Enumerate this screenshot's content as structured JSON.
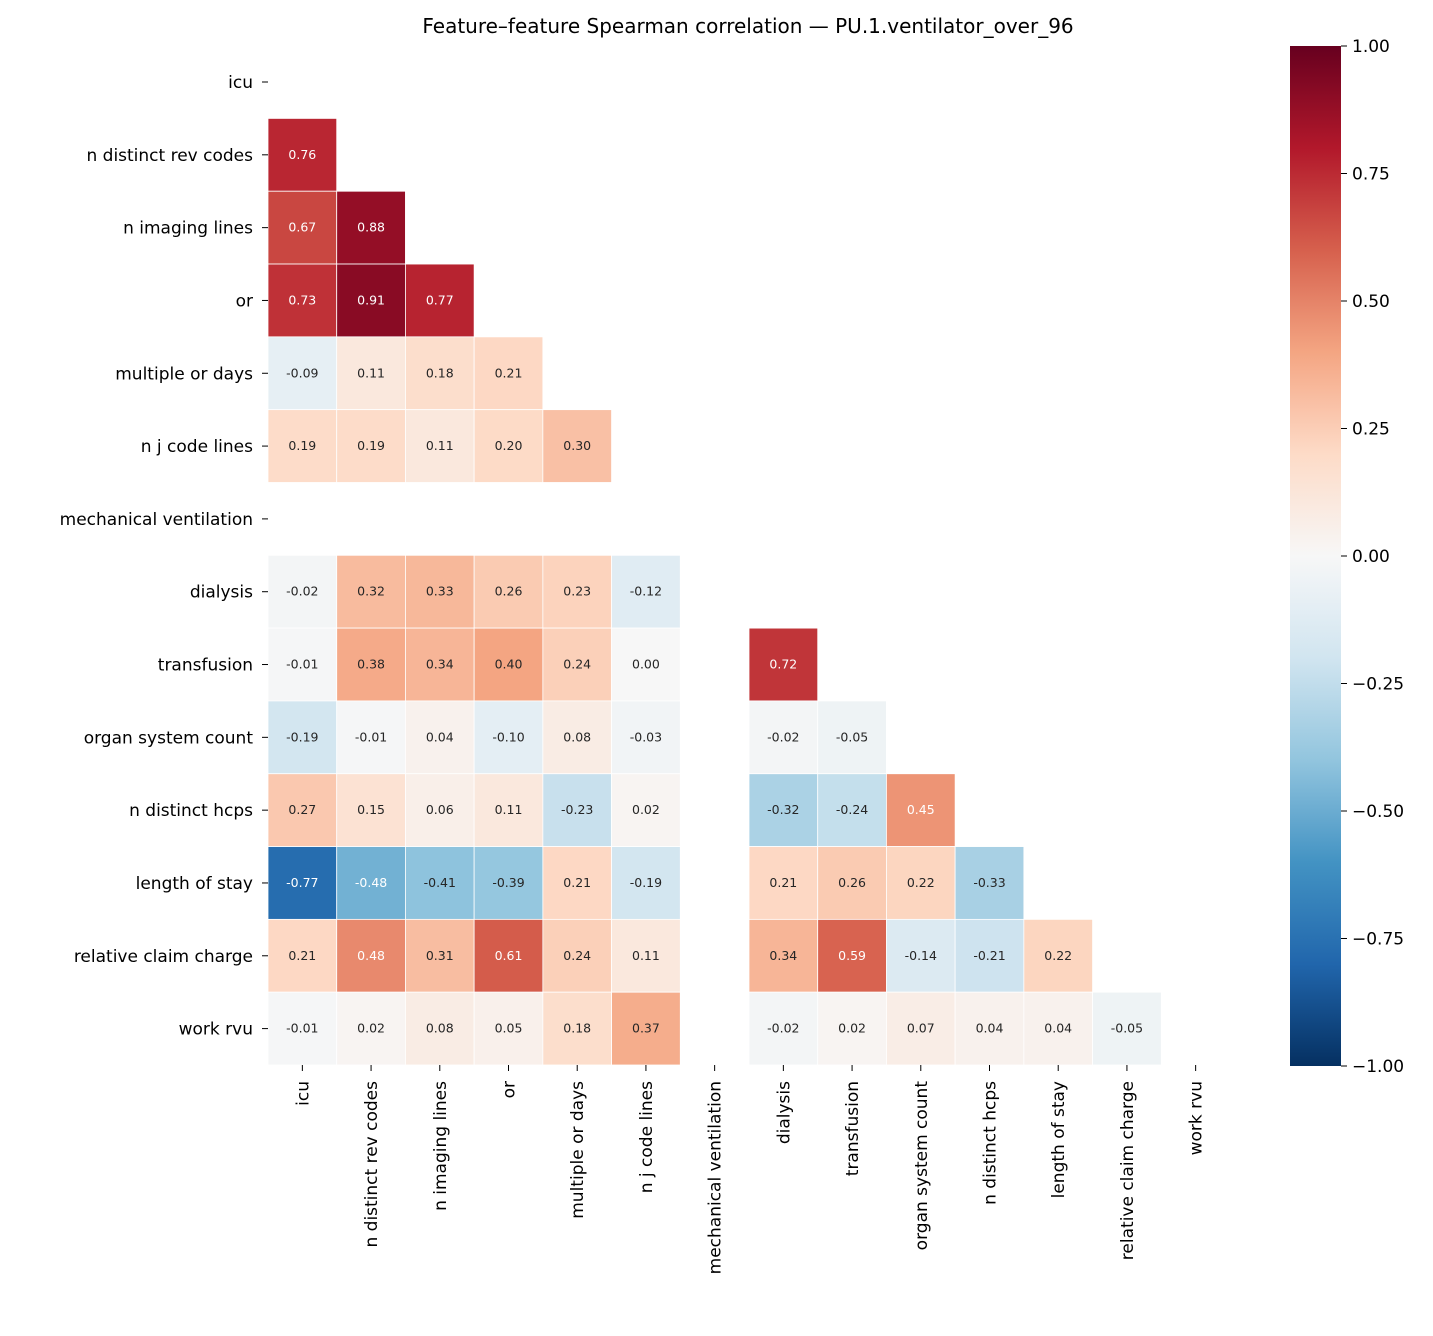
{
  "chart_data": {
    "type": "heatmap",
    "title": "Feature–feature Spearman correlation — PU.1.ventilator_over_96",
    "labels": [
      "icu",
      "n distinct rev codes",
      "n imaging lines",
      "or",
      "multiple or days",
      "n j code lines",
      "mechanical ventilation",
      "dialysis",
      "transfusion",
      "organ system count",
      "n distinct hcps",
      "length of stay",
      "relative claim charge",
      "work rvu"
    ],
    "mask": "upper triangle incl. diagonal",
    "lower_triangle": [
      [],
      [
        0.76
      ],
      [
        0.67,
        0.88
      ],
      [
        0.73,
        0.91,
        0.77
      ],
      [
        -0.09,
        0.11,
        0.18,
        0.21
      ],
      [
        0.19,
        0.19,
        0.11,
        0.2,
        0.3
      ],
      [
        null,
        null,
        null,
        null,
        null,
        null
      ],
      [
        -0.02,
        0.32,
        0.33,
        0.26,
        0.23,
        -0.12,
        null
      ],
      [
        -0.01,
        0.38,
        0.34,
        0.4,
        0.24,
        0.0,
        null,
        0.72
      ],
      [
        -0.19,
        -0.01,
        0.04,
        -0.1,
        0.08,
        -0.03,
        null,
        -0.02,
        -0.05
      ],
      [
        0.27,
        0.15,
        0.06,
        0.11,
        -0.23,
        0.02,
        null,
        -0.32,
        -0.24,
        0.45
      ],
      [
        -0.77,
        -0.48,
        -0.41,
        -0.39,
        0.21,
        -0.19,
        null,
        0.21,
        0.26,
        0.22,
        -0.33
      ],
      [
        0.21,
        0.48,
        0.31,
        0.61,
        0.24,
        0.11,
        null,
        0.34,
        0.59,
        -0.14,
        -0.21,
        0.22
      ],
      [
        -0.01,
        0.02,
        0.08,
        0.05,
        0.18,
        0.37,
        null,
        -0.02,
        0.02,
        0.07,
        0.04,
        0.04,
        -0.05
      ]
    ],
    "colormap": "RdBu_r",
    "colorbar": {
      "range": [
        -1.0,
        1.0
      ],
      "ticks": [
        "1.00",
        "0.75",
        "0.50",
        "0.25",
        "0.00",
        "−0.25",
        "−0.50",
        "−0.75",
        "−1.00"
      ]
    },
    "annotation_format": "0.00"
  }
}
